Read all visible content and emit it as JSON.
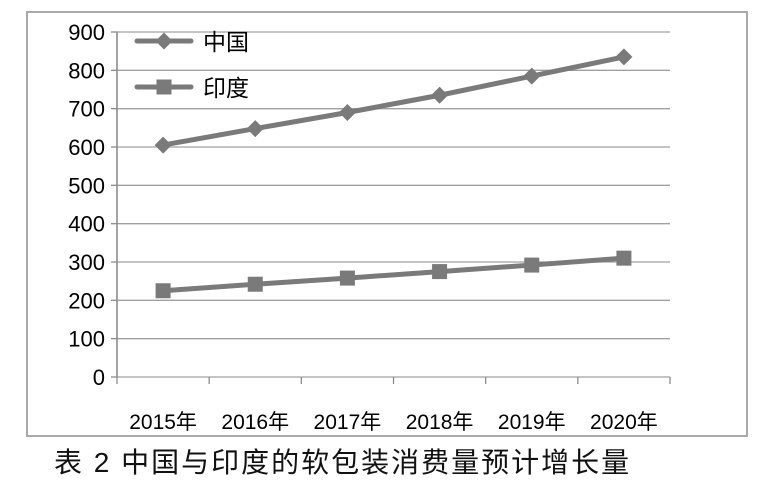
{
  "caption": "表 2  中国与印度的软包装消费量预计增长量",
  "chart_data": {
    "type": "line",
    "title": "",
    "xlabel": "",
    "ylabel": "",
    "categories": [
      "2015年",
      "2016年",
      "2017年",
      "2018年",
      "2019年",
      "2020年"
    ],
    "series": [
      {
        "name": "中国",
        "slug": "china",
        "marker": "diamond",
        "values": [
          605,
          648,
          690,
          735,
          785,
          835
        ]
      },
      {
        "name": "印度",
        "slug": "india",
        "marker": "square",
        "values": [
          225,
          242,
          258,
          275,
          292,
          310
        ]
      }
    ],
    "ylim": [
      0,
      900
    ],
    "ytick_step": 100,
    "grid": true,
    "legend_position": "top-left-inside",
    "colors": {
      "series": "#7a7a7a",
      "gridline": "#a0a0a0",
      "axis": "#8c8c8c",
      "frame_border": "#a9a9a9",
      "text": "#000000"
    }
  }
}
